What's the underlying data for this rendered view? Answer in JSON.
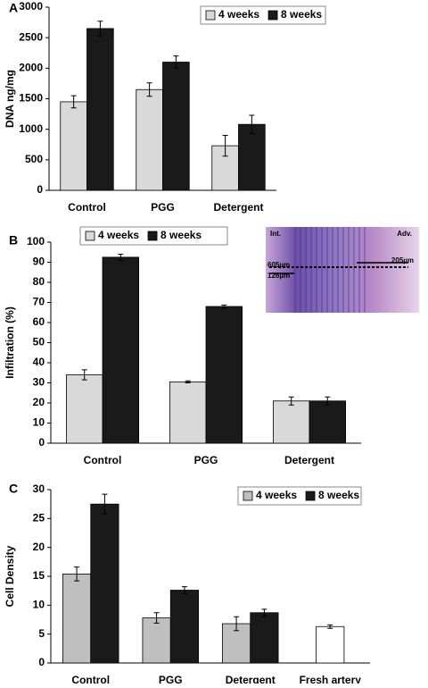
{
  "chart_data": [
    {
      "type": "bar",
      "panel_label": "A",
      "y_label": "DNA ng/mg",
      "categories": [
        "Control",
        "PGG",
        "Detergent"
      ],
      "series": [
        {
          "name": "4 weeks",
          "color": "#d9d9d9",
          "values": [
            1450,
            1650,
            730
          ],
          "errors": [
            100,
            110,
            170
          ]
        },
        {
          "name": "8 weeks",
          "color": "#1a1a1a",
          "values": [
            2650,
            2100,
            1080
          ],
          "errors": [
            120,
            100,
            150
          ]
        }
      ],
      "ylim": [
        0,
        3000
      ],
      "yticks": [
        0,
        500,
        1000,
        1500,
        2000,
        2500,
        3000
      ],
      "legend": "top-right"
    },
    {
      "type": "bar",
      "panel_label": "B",
      "y_label": "Infiltration (%)",
      "categories": [
        "Control",
        "PGG",
        "Detergent"
      ],
      "series": [
        {
          "name": "4 weeks",
          "color": "#d9d9d9",
          "values": [
            34,
            30.5,
            21
          ],
          "errors": [
            2.5,
            0.5,
            2
          ]
        },
        {
          "name": "8 weeks",
          "color": "#1a1a1a",
          "values": [
            92.5,
            68,
            21
          ],
          "errors": [
            1.5,
            0.7,
            2
          ]
        }
      ],
      "ylim": [
        0,
        100
      ],
      "yticks": [
        0,
        10,
        20,
        30,
        40,
        50,
        60,
        70,
        80,
        90,
        100
      ],
      "legend": "top-left",
      "annotations": [
        "Int.",
        "Adv.",
        "605µm",
        "126µm",
        "205µm"
      ]
    },
    {
      "type": "bar",
      "panel_label": "C",
      "y_label": "Cell Density",
      "categories": [
        "Control",
        "PGG",
        "Detergent",
        "Fresh artery"
      ],
      "series": [
        {
          "name": "4 weeks",
          "color": "#bfbfbf",
          "values": [
            15.4,
            7.8,
            6.8,
            null
          ],
          "errors": [
            1.2,
            0.9,
            1.2,
            null
          ]
        },
        {
          "name": "8 weeks",
          "color": "#1a1a1a",
          "values": [
            27.5,
            12.6,
            8.7,
            null
          ],
          "errors": [
            1.7,
            0.6,
            0.6,
            null
          ]
        },
        {
          "color": "#ffffff",
          "values": [
            null,
            null,
            null,
            6.3
          ],
          "errors": [
            null,
            null,
            null,
            0.3
          ]
        }
      ],
      "ylim": [
        0,
        30
      ],
      "yticks": [
        0,
        5,
        10,
        15,
        20,
        25,
        30
      ],
      "legend": "top-right"
    }
  ]
}
